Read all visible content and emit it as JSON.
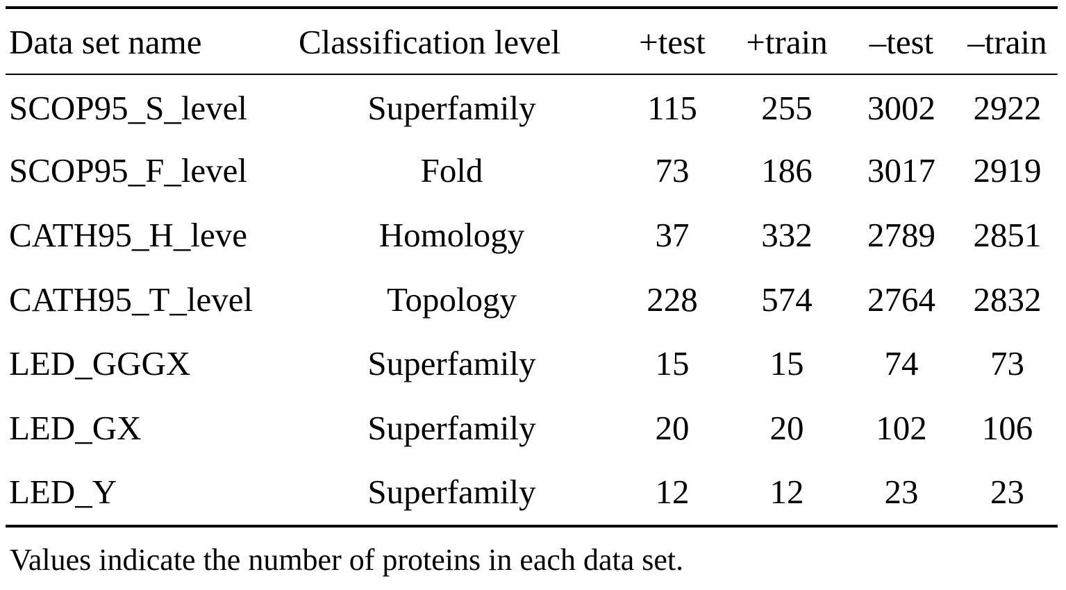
{
  "table": {
    "columns": [
      "Data set name",
      "Classification level",
      "+test",
      "+train",
      "–test",
      "–train"
    ],
    "rows": [
      [
        "SCOP95_S_level",
        "Superfamily",
        "115",
        "255",
        "3002",
        "2922"
      ],
      [
        "SCOP95_F_level",
        "Fold",
        "73",
        "186",
        "3017",
        "2919"
      ],
      [
        "CATH95_H_leve",
        "Homology",
        "37",
        "332",
        "2789",
        "2851"
      ],
      [
        "CATH95_T_level",
        "Topology",
        "228",
        "574",
        "2764",
        "2832"
      ],
      [
        "LED_GGGX",
        "Superfamily",
        "15",
        "15",
        "74",
        "73"
      ],
      [
        "LED_GX",
        "Superfamily",
        "20",
        "20",
        "102",
        "106"
      ],
      [
        "LED_Y",
        "Superfamily",
        "12",
        "12",
        "23",
        "23"
      ]
    ]
  },
  "footnote": "Values indicate the number of proteins in each data set."
}
